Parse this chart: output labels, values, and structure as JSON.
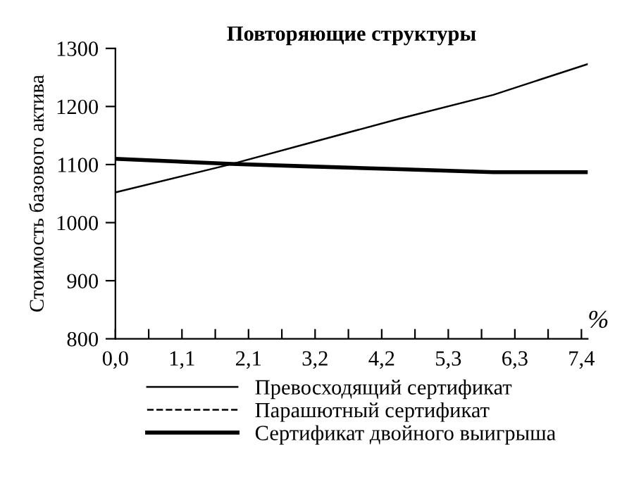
{
  "chart_data": {
    "type": "line",
    "title": "Повторяющие структуры",
    "ylabel": "Стоимость базового актива",
    "xlabel": "%",
    "xlim": [
      0,
      7.5
    ],
    "ylim": [
      800,
      1300
    ],
    "yticks": [
      800,
      900,
      1000,
      1100,
      1200,
      1300
    ],
    "xticks": [
      {
        "value": 0,
        "label": "0,0"
      },
      {
        "value": 0.529,
        "label": null
      },
      {
        "value": 1.057,
        "label": "1,1"
      },
      {
        "value": 1.586,
        "label": null
      },
      {
        "value": 2.114,
        "label": "2,1"
      },
      {
        "value": 2.643,
        "label": null
      },
      {
        "value": 3.171,
        "label": "3,2"
      },
      {
        "value": 3.7,
        "label": null
      },
      {
        "value": 4.229,
        "label": "4,2"
      },
      {
        "value": 4.757,
        "label": null
      },
      {
        "value": 5.286,
        "label": "5,3"
      },
      {
        "value": 5.814,
        "label": null
      },
      {
        "value": 6.343,
        "label": "6,3"
      },
      {
        "value": 6.871,
        "label": null
      },
      {
        "value": 7.4,
        "label": "7,4"
      }
    ],
    "x": [
      0,
      1.85,
      3.01,
      4.51,
      6.0,
      7.5
    ],
    "series": [
      {
        "name": "Превосходящий сертификат",
        "color": "#000000",
        "line_style": "solid",
        "values": [
          1052,
          1101,
          1135,
          1179,
          1220,
          1273
        ]
      },
      {
        "name": "Парашютный сертификат",
        "color": "#000000",
        "line_style": "dashed",
        "values": [
          null,
          null,
          null,
          null,
          null,
          null
        ]
      },
      {
        "name": "Сертификат двойного выигрыша",
        "color": "#000000",
        "line_style": "solid",
        "values": [
          1110,
          1101,
          1097,
          1092,
          1087,
          1087
        ]
      }
    ],
    "grid": false,
    "legend": "bottom",
    "marker": "none"
  }
}
